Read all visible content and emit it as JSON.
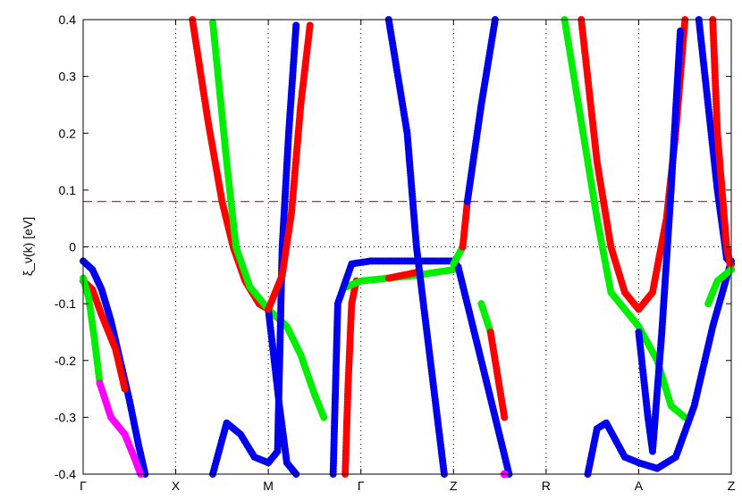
{
  "chart_data": {
    "type": "scatter",
    "ylabel": "ξ_ν(k) [eV]",
    "ylim": [
      -0.4,
      0.4
    ],
    "yticks": [
      -0.4,
      -0.3,
      -0.2,
      -0.1,
      0,
      0.1,
      0.2,
      0.3,
      0.4
    ],
    "ytick_labels": [
      "-0.4",
      "-0.3",
      "-0.2",
      "-0.1",
      "0",
      "0.1",
      "0.2",
      "0.3",
      "0.4"
    ],
    "xlim": [
      0,
      7
    ],
    "xticks": [
      {
        "x": 0,
        "label": "Γ"
      },
      {
        "x": 1,
        "label": "X"
      },
      {
        "x": 2,
        "label": "M"
      },
      {
        "x": 3,
        "label": "Γ"
      },
      {
        "x": 4,
        "label": "Z"
      },
      {
        "x": 5,
        "label": "R"
      },
      {
        "x": 6,
        "label": "A"
      },
      {
        "x": 7,
        "label": "Z"
      }
    ],
    "grid": "dotted vertical lines at high-symmetry points, dotted horizontal line at 0",
    "reference_line": {
      "y": 0.08,
      "style": "dashed",
      "color": "#e02020"
    },
    "colors": {
      "red": "#ff0000",
      "green": "#00ee00",
      "blue": "#0000ee",
      "magenta": "#ff00ff"
    },
    "bands": [
      {
        "color": "blue",
        "points": [
          [
            0,
            -0.025
          ],
          [
            0.1,
            -0.04
          ],
          [
            0.2,
            -0.075
          ],
          [
            0.3,
            -0.13
          ],
          [
            0.4,
            -0.2
          ],
          [
            0.5,
            -0.27
          ],
          [
            0.6,
            -0.35
          ],
          [
            0.67,
            -0.4
          ]
        ]
      },
      {
        "color": "red",
        "points": [
          [
            0,
            -0.06
          ],
          [
            0.1,
            -0.075
          ],
          [
            0.2,
            -0.12
          ],
          [
            0.35,
            -0.18
          ],
          [
            0.45,
            -0.25
          ]
        ]
      },
      {
        "color": "green",
        "points": [
          [
            0,
            -0.055
          ],
          [
            0.06,
            -0.09
          ],
          [
            0.12,
            -0.16
          ],
          [
            0.18,
            -0.24
          ]
        ]
      },
      {
        "color": "magenta",
        "points": [
          [
            0.18,
            -0.24
          ],
          [
            0.3,
            -0.3
          ],
          [
            0.45,
            -0.33
          ],
          [
            0.55,
            -0.37
          ],
          [
            0.62,
            -0.4
          ]
        ]
      },
      {
        "color": "red",
        "points": [
          [
            1.18,
            0.4
          ],
          [
            1.35,
            0.22
          ],
          [
            1.5,
            0.08
          ],
          [
            1.62,
            0.0
          ],
          [
            1.75,
            -0.06
          ],
          [
            1.9,
            -0.1
          ],
          [
            2.0,
            -0.11
          ]
        ]
      },
      {
        "color": "green",
        "points": [
          [
            1.4,
            0.395
          ],
          [
            1.55,
            0.15
          ],
          [
            1.65,
            0.0
          ],
          [
            1.8,
            -0.07
          ],
          [
            2.0,
            -0.11
          ],
          [
            2.2,
            -0.14
          ],
          [
            2.35,
            -0.19
          ],
          [
            2.5,
            -0.26
          ],
          [
            2.6,
            -0.3
          ]
        ]
      },
      {
        "color": "blue",
        "points": [
          [
            2.0,
            -0.11
          ],
          [
            2.05,
            -0.18
          ],
          [
            2.12,
            -0.28
          ],
          [
            2.2,
            -0.38
          ],
          [
            2.3,
            -0.4
          ]
        ]
      },
      {
        "color": "blue",
        "points": [
          [
            1.4,
            -0.4
          ],
          [
            1.55,
            -0.31
          ],
          [
            1.7,
            -0.33
          ],
          [
            1.85,
            -0.37
          ],
          [
            2.0,
            -0.38
          ],
          [
            2.1,
            -0.36
          ],
          [
            2.15,
            0.0
          ],
          [
            2.22,
            0.2
          ],
          [
            2.3,
            0.39
          ]
        ]
      },
      {
        "color": "red",
        "points": [
          [
            2.0,
            -0.11
          ],
          [
            2.15,
            -0.05
          ],
          [
            2.25,
            0.06
          ],
          [
            2.35,
            0.25
          ],
          [
            2.45,
            0.39
          ]
        ]
      },
      {
        "color": "red",
        "points": [
          [
            2.83,
            -0.4
          ],
          [
            2.86,
            -0.25
          ],
          [
            2.9,
            -0.1
          ],
          [
            2.95,
            -0.06
          ]
        ]
      },
      {
        "color": "green",
        "points": [
          [
            2.85,
            -0.07
          ],
          [
            3.0,
            -0.06
          ],
          [
            3.3,
            -0.055
          ],
          [
            3.6,
            -0.05
          ],
          [
            4.0,
            -0.04
          ]
        ]
      },
      {
        "color": "red",
        "points": [
          [
            3.3,
            -0.055
          ],
          [
            3.6,
            -0.045
          ]
        ]
      },
      {
        "color": "blue",
        "points": [
          [
            2.7,
            -0.4
          ],
          [
            2.75,
            -0.1
          ],
          [
            2.9,
            -0.03
          ],
          [
            3.1,
            -0.025
          ],
          [
            3.5,
            -0.025
          ],
          [
            4.0,
            -0.025
          ],
          [
            4.05,
            -0.035
          ],
          [
            4.3,
            -0.2
          ],
          [
            4.6,
            -0.4
          ]
        ]
      },
      {
        "color": "blue",
        "points": [
          [
            3.3,
            0.4
          ],
          [
            3.5,
            0.2
          ],
          [
            3.6,
            0.0
          ],
          [
            3.75,
            -0.2
          ],
          [
            3.9,
            -0.4
          ]
        ]
      },
      {
        "color": "green",
        "points": [
          [
            4.0,
            -0.03
          ],
          [
            4.1,
            0.0
          ]
        ]
      },
      {
        "color": "red",
        "points": [
          [
            4.1,
            0.0
          ],
          [
            4.15,
            0.08
          ]
        ]
      },
      {
        "color": "blue",
        "points": [
          [
            4.15,
            0.08
          ],
          [
            4.3,
            0.25
          ],
          [
            4.45,
            0.4
          ]
        ]
      },
      {
        "color": "green",
        "points": [
          [
            4.3,
            -0.1
          ],
          [
            4.4,
            -0.15
          ]
        ]
      },
      {
        "color": "red",
        "points": [
          [
            4.4,
            -0.15
          ],
          [
            4.55,
            -0.3
          ]
        ]
      },
      {
        "color": "magenta",
        "points": [
          [
            4.55,
            -0.4
          ]
        ]
      },
      {
        "color": "green",
        "points": [
          [
            5.2,
            0.4
          ],
          [
            5.4,
            0.2
          ],
          [
            5.55,
            0.05
          ],
          [
            5.7,
            -0.08
          ],
          [
            5.9,
            -0.12
          ],
          [
            6.0,
            -0.14
          ],
          [
            6.2,
            -0.2
          ],
          [
            6.35,
            -0.28
          ],
          [
            6.5,
            -0.3
          ]
        ]
      },
      {
        "color": "red",
        "points": [
          [
            5.38,
            0.4
          ],
          [
            5.55,
            0.15
          ],
          [
            5.7,
            0.0
          ],
          [
            5.85,
            -0.08
          ],
          [
            6.0,
            -0.11
          ],
          [
            6.15,
            -0.08
          ],
          [
            6.3,
            0.05
          ],
          [
            6.4,
            0.2
          ],
          [
            6.5,
            0.4
          ]
        ]
      },
      {
        "color": "blue",
        "points": [
          [
            6.0,
            -0.15
          ],
          [
            6.1,
            -0.3
          ],
          [
            6.15,
            -0.36
          ],
          [
            6.25,
            -0.15
          ],
          [
            6.35,
            0.1
          ],
          [
            6.45,
            0.38
          ]
        ]
      },
      {
        "color": "blue",
        "points": [
          [
            5.45,
            -0.4
          ],
          [
            5.55,
            -0.32
          ],
          [
            5.65,
            -0.31
          ],
          [
            5.75,
            -0.34
          ],
          [
            5.85,
            -0.37
          ],
          [
            6.0,
            -0.38
          ],
          [
            6.2,
            -0.39
          ],
          [
            6.4,
            -0.37
          ],
          [
            6.6,
            -0.28
          ],
          [
            6.8,
            -0.14
          ],
          [
            7.0,
            -0.025
          ]
        ]
      },
      {
        "color": "blue",
        "points": [
          [
            6.65,
            0.4
          ],
          [
            6.75,
            0.25
          ],
          [
            6.85,
            0.1
          ],
          [
            6.95,
            -0.02
          ],
          [
            7.0,
            -0.03
          ]
        ]
      },
      {
        "color": "red",
        "points": [
          [
            6.8,
            0.4
          ],
          [
            6.85,
            0.2
          ],
          [
            6.95,
            0.0
          ],
          [
            7.0,
            -0.04
          ]
        ]
      },
      {
        "color": "green",
        "points": [
          [
            6.75,
            -0.1
          ],
          [
            6.85,
            -0.06
          ],
          [
            7.0,
            -0.04
          ]
        ]
      }
    ]
  }
}
